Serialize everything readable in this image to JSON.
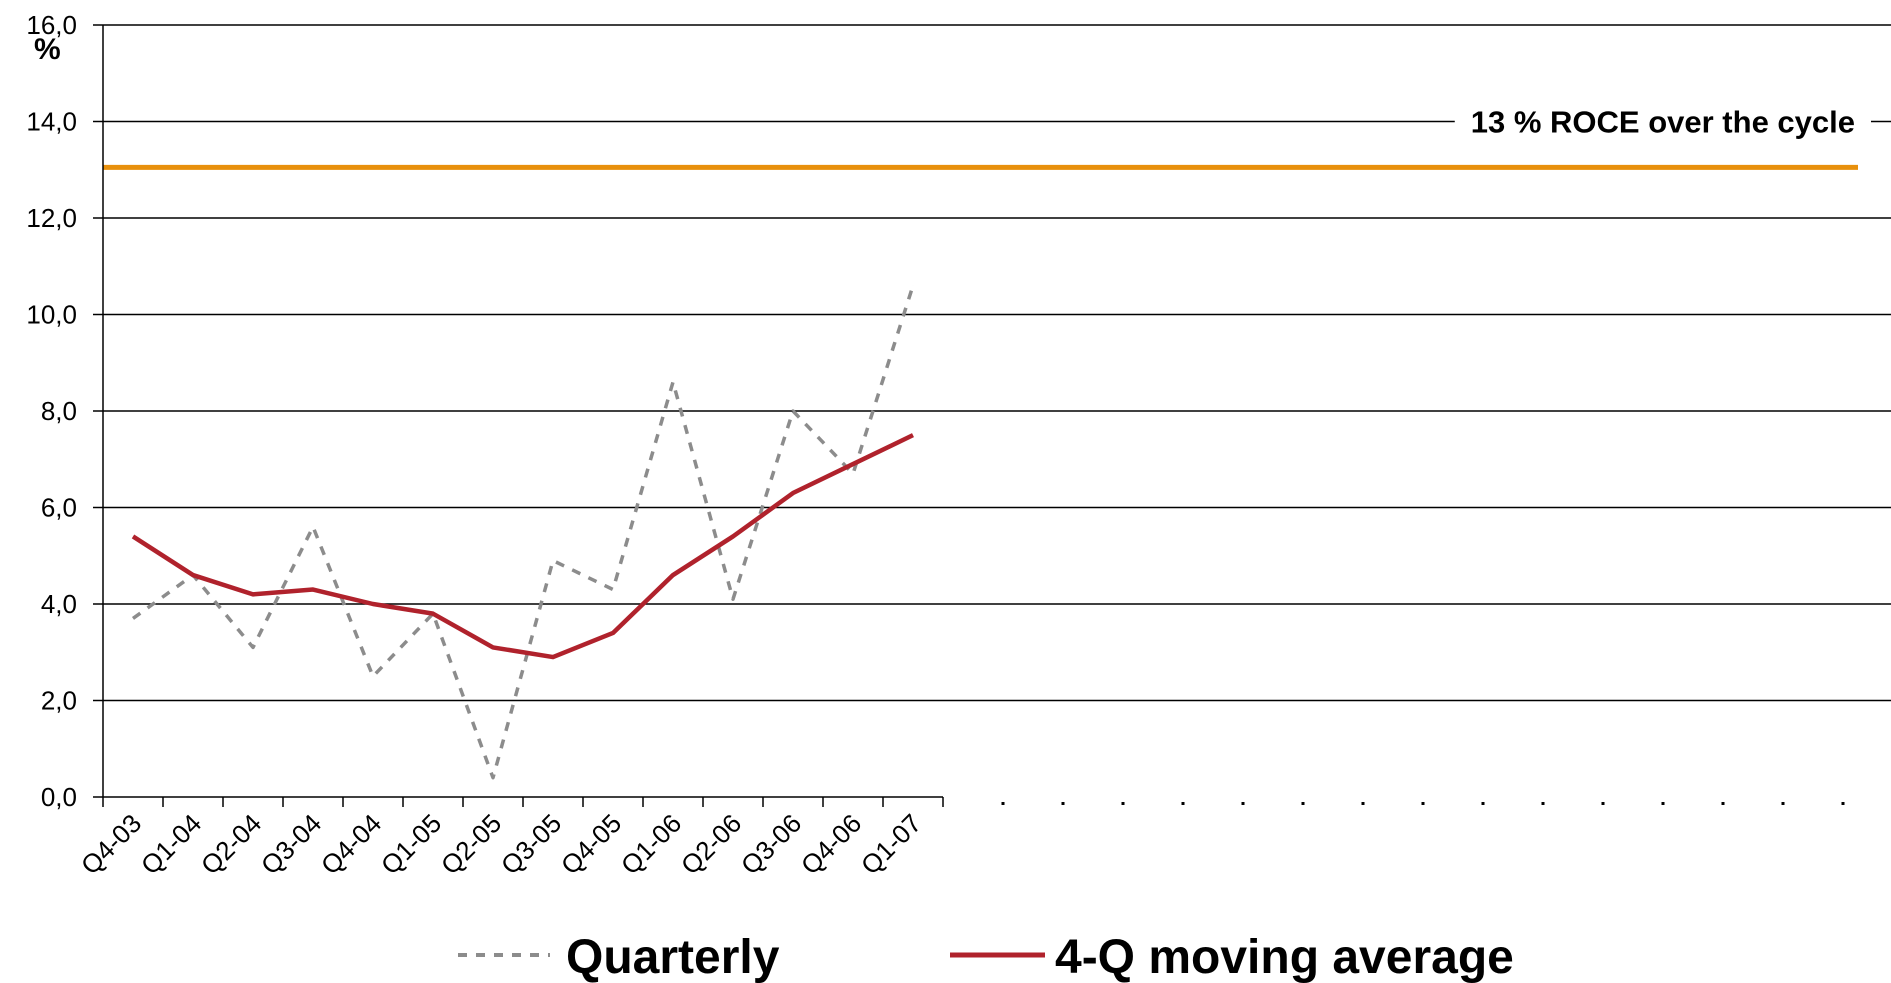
{
  "chart_data": {
    "type": "line",
    "ylabel": "%",
    "ylim": [
      0,
      16
    ],
    "y_ticks": [
      "0,0",
      "2,0",
      "4,0",
      "6,0",
      "8,0",
      "10,0",
      "12,0",
      "14,0",
      "16,0"
    ],
    "y_tick_values": [
      0,
      2,
      4,
      6,
      8,
      10,
      12,
      14,
      16
    ],
    "categories": [
      "Q4-03",
      "Q1-04",
      "Q2-04",
      "Q3-04",
      "Q4-04",
      "Q1-05",
      "Q2-05",
      "Q3-05",
      "Q4-05",
      "Q1-06",
      "Q2-06",
      "Q3-06",
      "Q4-06",
      "Q1-07"
    ],
    "total_slots": 30,
    "grid": true,
    "series": [
      {
        "name": "Quarterly",
        "style": "dashed",
        "color": "#8c8c8c",
        "values": [
          3.7,
          4.6,
          3.1,
          5.6,
          2.5,
          3.8,
          0.4,
          4.9,
          4.3,
          8.6,
          4.1,
          8.0,
          6.7,
          10.6
        ]
      },
      {
        "name": "4-Q moving average",
        "style": "solid",
        "color": "#b0222c",
        "values": [
          5.4,
          4.6,
          4.2,
          4.3,
          4.0,
          3.8,
          3.1,
          2.9,
          3.4,
          4.6,
          5.4,
          6.3,
          6.9,
          7.5
        ]
      }
    ],
    "reference_line": {
      "value": 13.05,
      "color": "#e8900c",
      "label": "13 % ROCE over the cycle"
    },
    "legend_placement": "bottom"
  }
}
